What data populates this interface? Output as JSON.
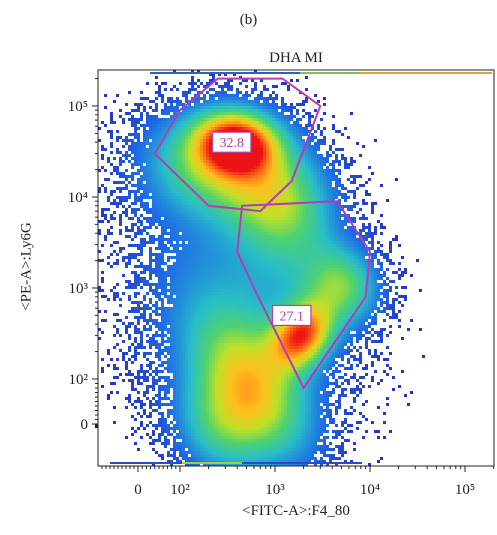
{
  "panel_label": "(b)",
  "chart_data": {
    "type": "scatter",
    "subtype": "flow-cytometry-density-plot",
    "title": "DHA MI",
    "xlabel": "<FITC-A>:F4_80",
    "ylabel": "<PE-A>:Ly6G",
    "x_scale": "biexponential",
    "y_scale": "biexponential",
    "x_ticks": [
      "0",
      "10²",
      "10³",
      "10⁴",
      "10⁵"
    ],
    "y_ticks": [
      "0",
      "10²",
      "10³",
      "10⁴",
      "10⁵"
    ],
    "populations": [
      {
        "name": "upper",
        "center": [
          350,
          40000
        ],
        "label_value": "32.8"
      },
      {
        "name": "lower",
        "center": [
          1500,
          500
        ],
        "label_value": "27.1"
      }
    ],
    "gates": [
      {
        "label": "32.8",
        "percent": 32.8,
        "polygon": [
          [
            250,
            200000
          ],
          [
            1200,
            200000
          ],
          [
            3000,
            100000
          ],
          [
            1500,
            15000
          ],
          [
            700,
            7000
          ],
          [
            200,
            8000
          ],
          [
            40,
            30000
          ],
          [
            100,
            90000
          ]
        ]
      },
      {
        "label": "27.1",
        "percent": 27.1,
        "polygon": [
          [
            450,
            8000
          ],
          [
            4500,
            9000
          ],
          [
            10000,
            2500
          ],
          [
            9000,
            800
          ],
          [
            2000,
            80
          ],
          [
            600,
            1000
          ],
          [
            400,
            2500
          ]
        ]
      }
    ],
    "colors": {
      "gate": "#b43cb4",
      "density_low": "#1a1aa8",
      "density_mid": "#27c3a6",
      "density_high": "#ff1f1f"
    }
  }
}
